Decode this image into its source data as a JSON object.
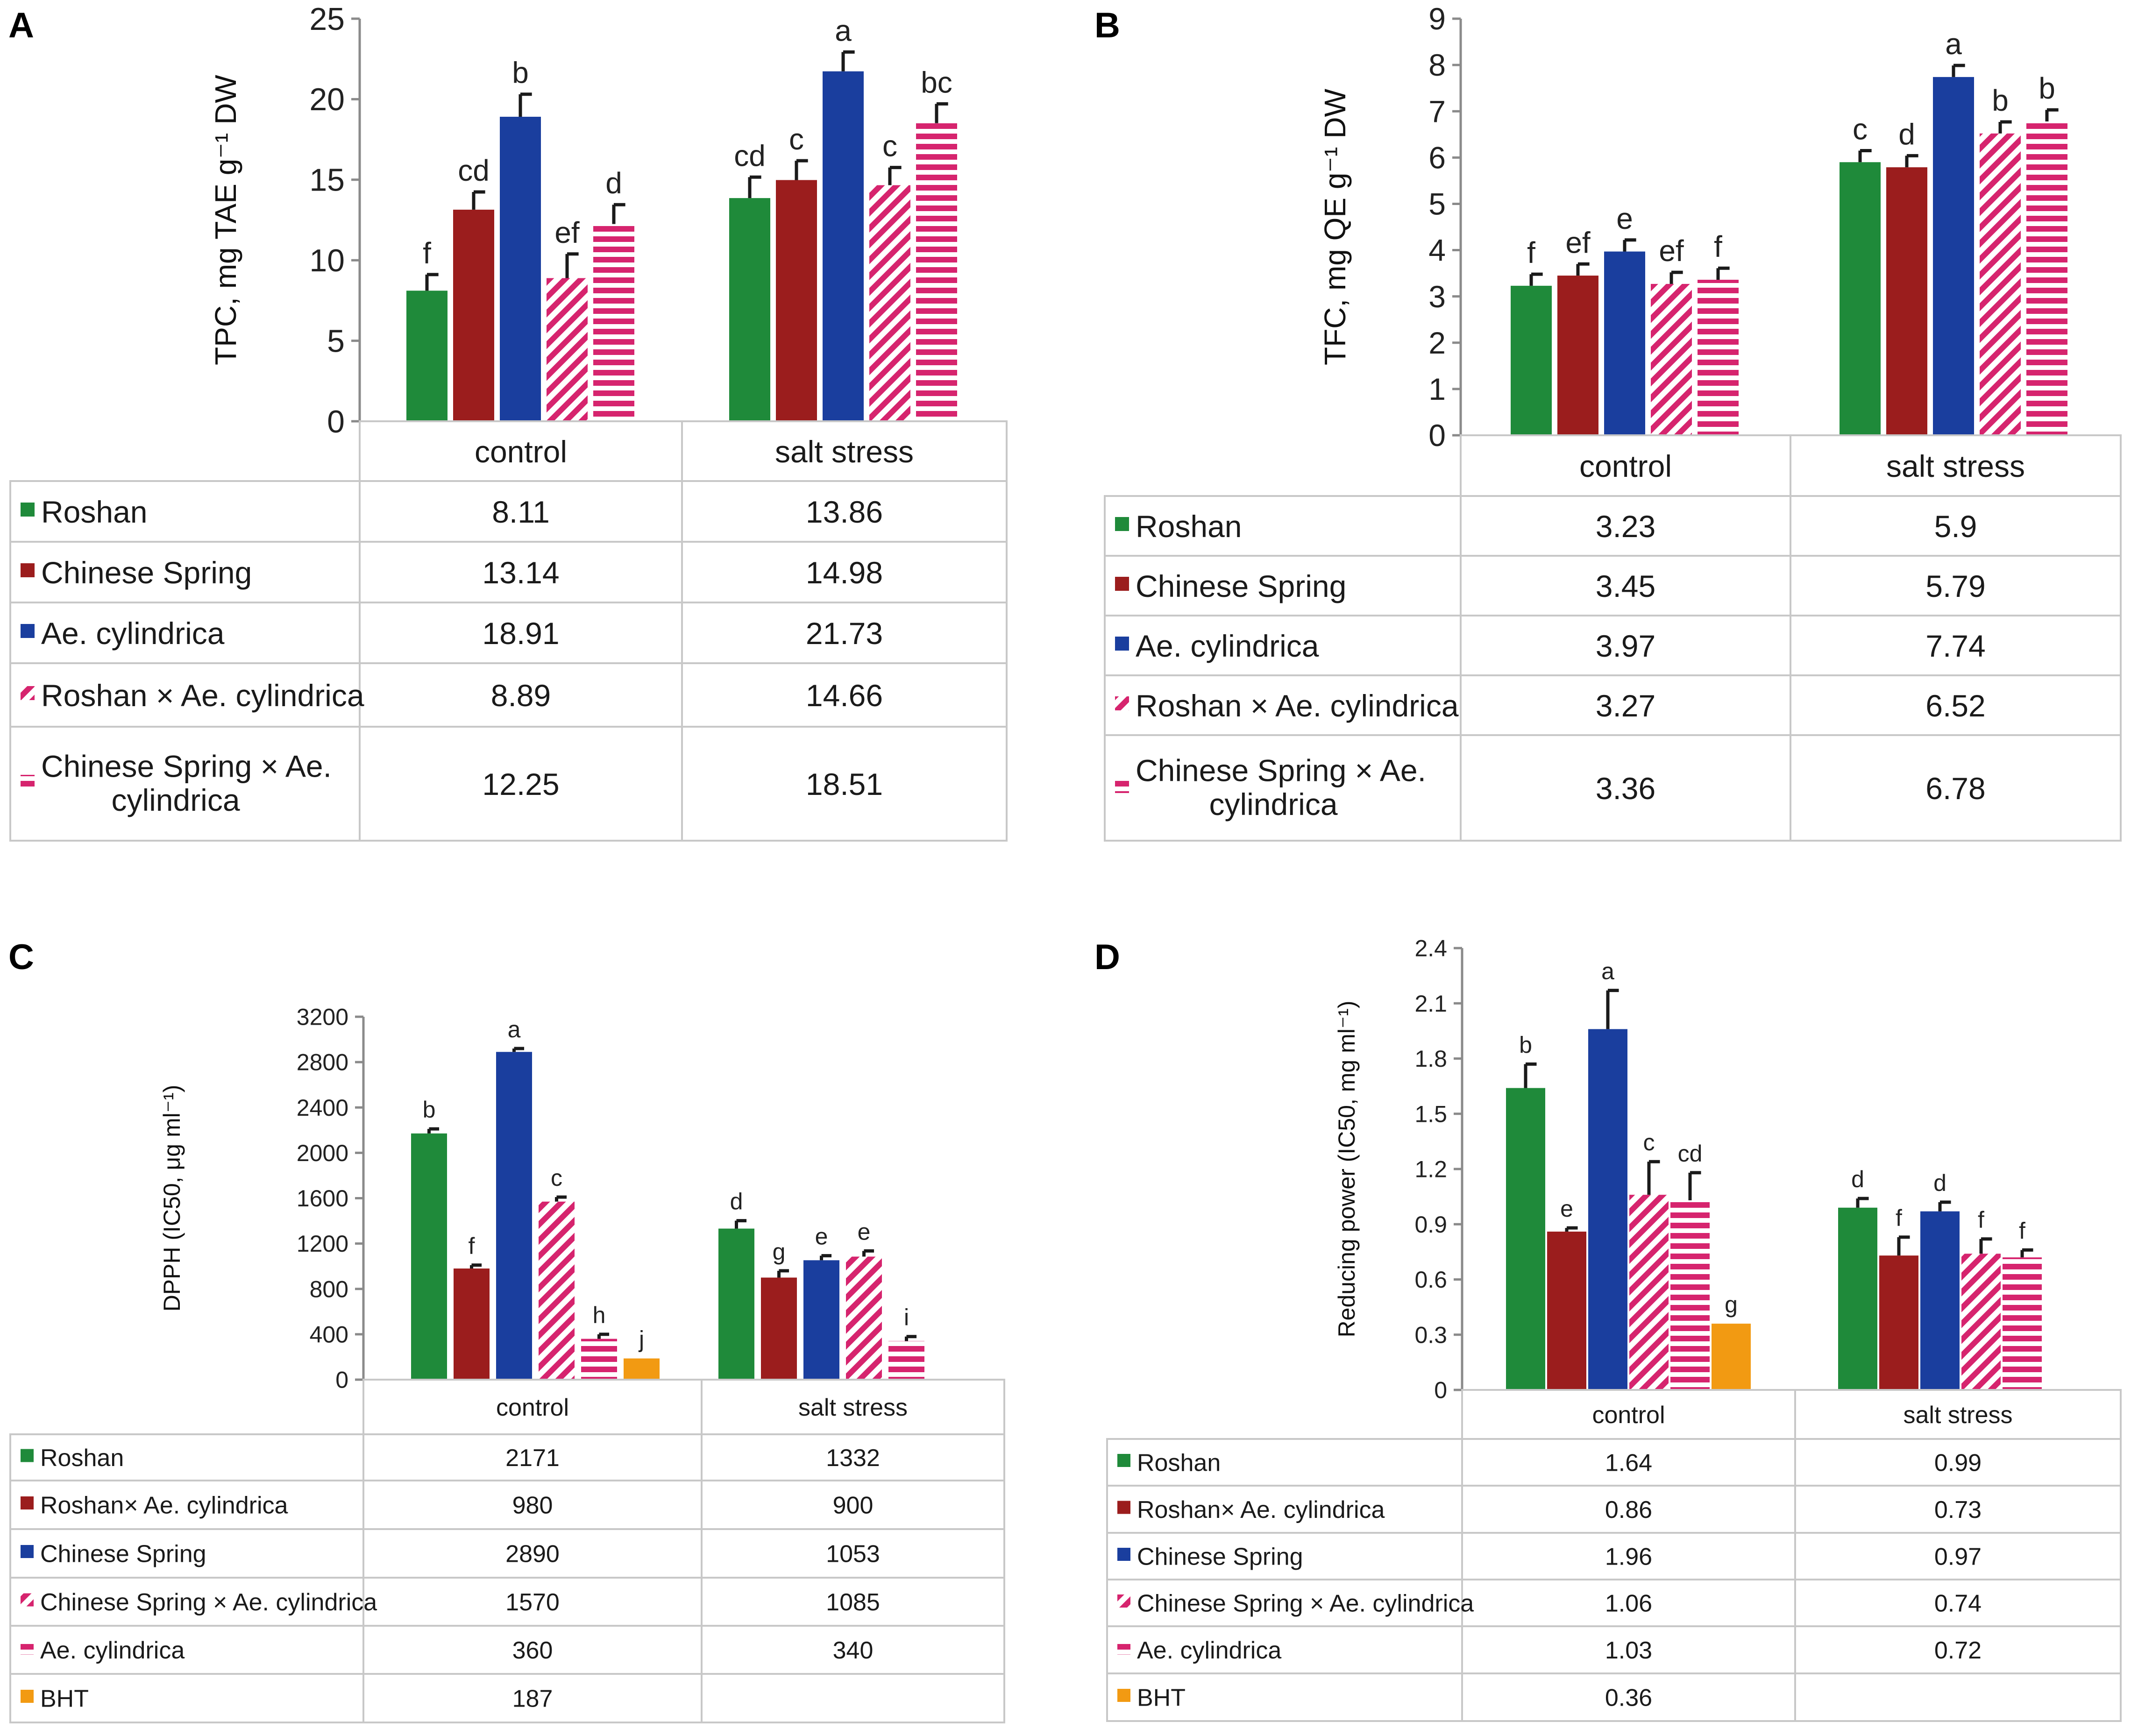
{
  "chart_data": [
    {
      "panel": "A",
      "type": "bar",
      "ylabel": "TPC, mg TAE g⁻¹ DW",
      "ylim": [
        0,
        25
      ],
      "yticks": [
        "0",
        "5",
        "10",
        "15",
        "20",
        "25"
      ],
      "groups": [
        "control",
        "salt stress"
      ],
      "series": [
        {
          "name": "Roshan",
          "values": [
            8.11,
            13.86
          ],
          "display": [
            "8.11",
            "13.86"
          ],
          "sig": [
            "f",
            "cd"
          ],
          "err": [
            1.0,
            1.3
          ],
          "pattern": "solid",
          "color": "#1f8a3a"
        },
        {
          "name": "Chinese Spring",
          "values": [
            13.14,
            14.98
          ],
          "display": [
            "13.14",
            "14.98"
          ],
          "sig": [
            "cd",
            "c"
          ],
          "err": [
            1.1,
            1.2
          ],
          "pattern": "solid",
          "color": "#9b1d1d"
        },
        {
          "name": "Ae. cylindrica",
          "values": [
            18.91,
            21.73
          ],
          "display": [
            "18.91",
            "21.73"
          ],
          "sig": [
            "b",
            "a"
          ],
          "err": [
            1.4,
            1.2
          ],
          "pattern": "solid",
          "color": "#1a3e9e"
        },
        {
          "name": "Roshan × Ae. cylindrica",
          "values": [
            8.89,
            14.66
          ],
          "display": [
            "8.89",
            "14.66"
          ],
          "sig": [
            "ef",
            "c"
          ],
          "err": [
            1.5,
            1.1
          ],
          "pattern": "diagonal",
          "color": "#d6246e"
        },
        {
          "name": "Chinese Spring × Ae. cylindrica",
          "values": [
            12.25,
            18.51
          ],
          "display": [
            "12.25",
            "18.51"
          ],
          "sig": [
            "d",
            "bc"
          ],
          "err": [
            1.2,
            1.2
          ],
          "pattern": "horizontal",
          "color": "#d6246e"
        }
      ]
    },
    {
      "panel": "B",
      "type": "bar",
      "ylabel": "TFC, mg QE g⁻¹ DW",
      "ylim": [
        0,
        9
      ],
      "yticks": [
        "0",
        "1",
        "2",
        "3",
        "4",
        "5",
        "6",
        "7",
        "8",
        "9"
      ],
      "groups": [
        "control",
        "salt stress"
      ],
      "series": [
        {
          "name": "Roshan",
          "values": [
            3.23,
            5.9
          ],
          "display": [
            "3.23",
            "5.9"
          ],
          "sig": [
            "f",
            "c"
          ],
          "err": [
            0.25,
            0.25
          ],
          "pattern": "solid",
          "color": "#1f8a3a"
        },
        {
          "name": "Chinese Spring",
          "values": [
            3.45,
            5.79
          ],
          "display": [
            "3.45",
            "5.79"
          ],
          "sig": [
            "ef",
            "d"
          ],
          "err": [
            0.25,
            0.25
          ],
          "pattern": "solid",
          "color": "#9b1d1d"
        },
        {
          "name": "Ae. cylindrica",
          "values": [
            3.97,
            7.74
          ],
          "display": [
            "3.97",
            "7.74"
          ],
          "sig": [
            "e",
            "a"
          ],
          "err": [
            0.25,
            0.25
          ],
          "pattern": "solid",
          "color": "#1a3e9e"
        },
        {
          "name": "Roshan × Ae. cylindrica",
          "values": [
            3.27,
            6.52
          ],
          "display": [
            "3.27",
            "6.52"
          ],
          "sig": [
            "ef",
            "b"
          ],
          "err": [
            0.25,
            0.25
          ],
          "pattern": "diagonal",
          "color": "#d6246e"
        },
        {
          "name": "Chinese Spring × Ae. cylindrica",
          "values": [
            3.36,
            6.78
          ],
          "display": [
            "3.36",
            "6.78"
          ],
          "sig": [
            "f",
            "b"
          ],
          "err": [
            0.25,
            0.25
          ],
          "pattern": "horizontal",
          "color": "#d6246e"
        }
      ]
    },
    {
      "panel": "C",
      "type": "bar",
      "ylabel": "DPPH (IC50,  μg ml⁻¹)",
      "ylim": [
        0,
        3200
      ],
      "yticks": [
        "0",
        "400",
        "800",
        "1200",
        "1600",
        "2000",
        "2400",
        "2800",
        "3200"
      ],
      "groups": [
        "control",
        "salt stress"
      ],
      "series": [
        {
          "name": "Roshan",
          "values": [
            2171,
            1332
          ],
          "display": [
            "2171",
            "1332"
          ],
          "sig": [
            "b",
            "d"
          ],
          "err": [
            40,
            70
          ],
          "pattern": "solid",
          "color": "#1f8a3a"
        },
        {
          "name": "Roshan× Ae. cylindrica",
          "values": [
            980,
            900
          ],
          "display": [
            "980",
            "900"
          ],
          "sig": [
            "f",
            "g"
          ],
          "err": [
            30,
            60
          ],
          "pattern": "solid",
          "color": "#9b1d1d"
        },
        {
          "name": "Chinese Spring",
          "values": [
            2890,
            1053
          ],
          "display": [
            "2890",
            "1053"
          ],
          "sig": [
            "a",
            "e"
          ],
          "err": [
            30,
            40
          ],
          "pattern": "solid",
          "color": "#1a3e9e"
        },
        {
          "name": "Chinese Spring × Ae. cylindrica",
          "values": [
            1570,
            1085
          ],
          "display": [
            "1570",
            "1085"
          ],
          "sig": [
            "c",
            "e"
          ],
          "err": [
            40,
            50
          ],
          "pattern": "diagonal",
          "color": "#d6246e"
        },
        {
          "name": "Ae. cylindrica",
          "values": [
            360,
            340
          ],
          "display": [
            "360",
            "340"
          ],
          "sig": [
            "h",
            "i"
          ],
          "err": [
            40,
            40
          ],
          "pattern": "horizontal",
          "color": "#d6246e"
        },
        {
          "name": "BHT",
          "values": [
            187,
            null
          ],
          "display": [
            "187",
            ""
          ],
          "sig": [
            "j",
            ""
          ],
          "err": [
            0,
            0
          ],
          "pattern": "solid",
          "color": "#f29a12"
        }
      ]
    },
    {
      "panel": "D",
      "type": "bar",
      "ylabel": "Reducing power (IC50,  mg ml⁻¹)",
      "ylim": [
        0,
        2.4
      ],
      "yticks": [
        "0",
        "0.3",
        "0.6",
        "0.9",
        "1.2",
        "1.5",
        "1.8",
        "2.1",
        "2.4"
      ],
      "groups": [
        "control",
        "salt stress"
      ],
      "series": [
        {
          "name": "Roshan",
          "values": [
            1.64,
            0.99
          ],
          "display": [
            "1.64",
            "0.99"
          ],
          "sig": [
            "b",
            "d"
          ],
          "err": [
            0.13,
            0.05
          ],
          "pattern": "solid",
          "color": "#1f8a3a"
        },
        {
          "name": "Roshan× Ae. cylindrica",
          "values": [
            0.86,
            0.73
          ],
          "display": [
            "0.86",
            "0.73"
          ],
          "sig": [
            "e",
            "f"
          ],
          "err": [
            0.02,
            0.1
          ],
          "pattern": "solid",
          "color": "#9b1d1d"
        },
        {
          "name": "Chinese Spring",
          "values": [
            1.96,
            0.97
          ],
          "display": [
            "1.96",
            "0.97"
          ],
          "sig": [
            "a",
            "d"
          ],
          "err": [
            0.21,
            0.05
          ],
          "pattern": "solid",
          "color": "#1a3e9e"
        },
        {
          "name": "Chinese Spring × Ae. cylindrica",
          "values": [
            1.06,
            0.74
          ],
          "display": [
            "1.06",
            "0.74"
          ],
          "sig": [
            "c",
            "f"
          ],
          "err": [
            0.18,
            0.08
          ],
          "pattern": "diagonal",
          "color": "#d6246e"
        },
        {
          "name": "Ae. cylindrica",
          "values": [
            1.03,
            0.72
          ],
          "display": [
            "1.03",
            "0.72"
          ],
          "sig": [
            "cd",
            "f"
          ],
          "err": [
            0.15,
            0.04
          ],
          "pattern": "horizontal",
          "color": "#d6246e"
        },
        {
          "name": "BHT",
          "values": [
            0.36,
            null
          ],
          "display": [
            "0.36",
            ""
          ],
          "sig": [
            "g",
            ""
          ],
          "err": [
            0,
            0
          ],
          "pattern": "solid",
          "color": "#f29a12"
        }
      ]
    }
  ]
}
